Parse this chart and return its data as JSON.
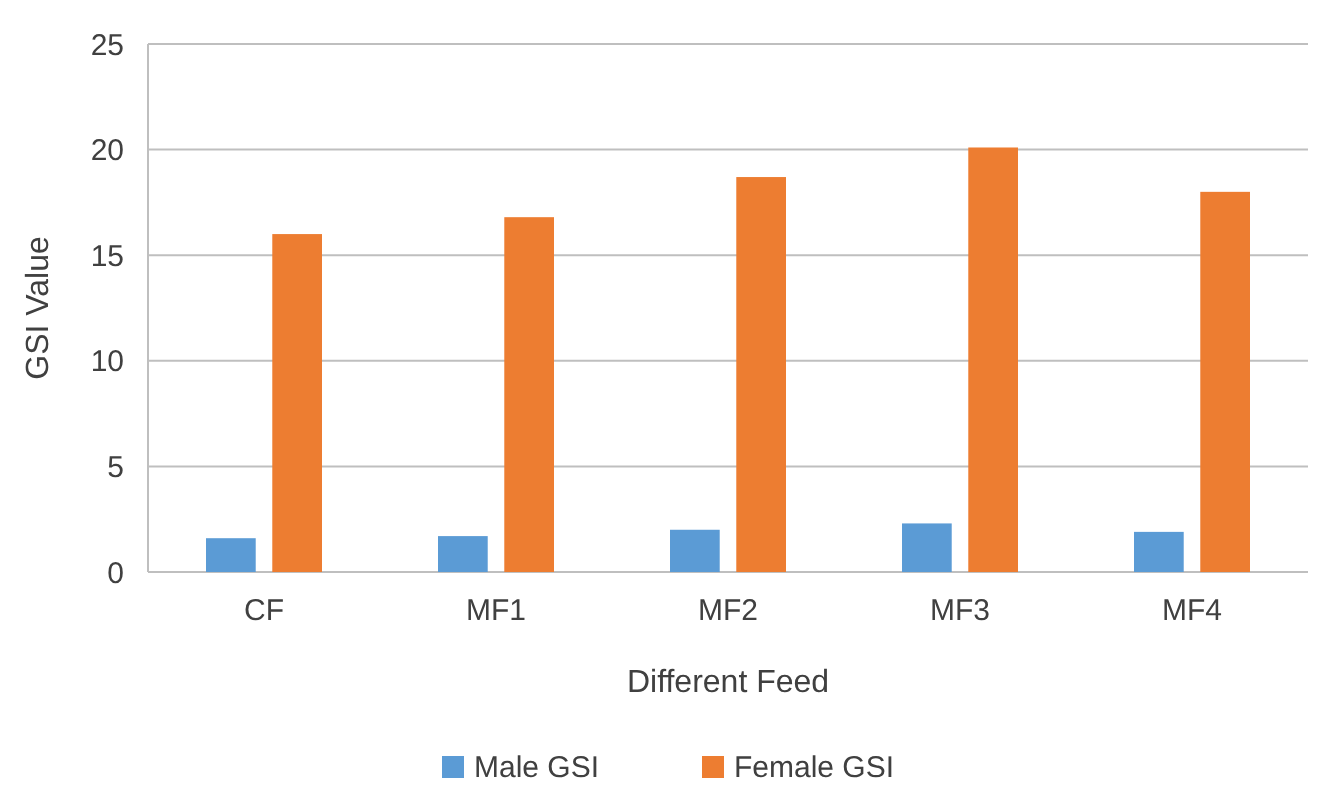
{
  "chart_data": {
    "type": "bar",
    "xlabel": "Different Feed",
    "ylabel": "GSI Value",
    "categories": [
      "CF",
      "MF1",
      "MF2",
      "MF3",
      "MF4"
    ],
    "series": [
      {
        "name": "Male GSI",
        "color": "#5b9bd5",
        "values": [
          1.6,
          1.7,
          2.0,
          2.3,
          1.9
        ]
      },
      {
        "name": "Female GSI",
        "color": "#ed7d31",
        "values": [
          16.0,
          16.8,
          18.7,
          20.1,
          18.0
        ]
      }
    ],
    "ylim": [
      0,
      25
    ],
    "yticks": [
      0,
      5,
      10,
      15,
      20,
      25
    ],
    "grid": "y",
    "legend": "bottom"
  }
}
